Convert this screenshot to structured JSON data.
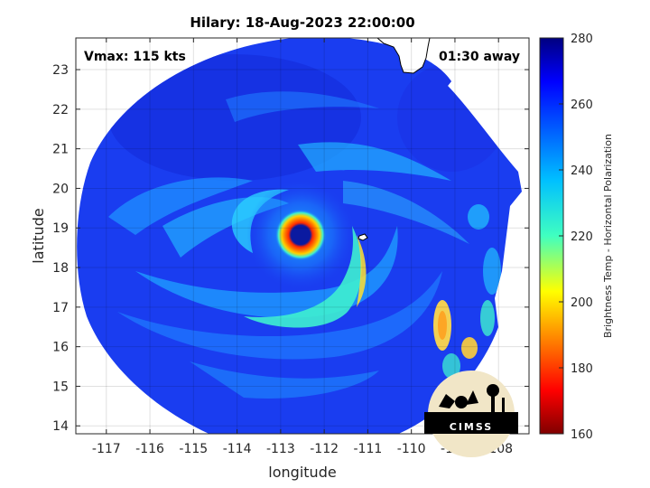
{
  "chart_data": {
    "type": "heatmap",
    "title": "Hilary: 18-Aug-2023 22:00:00",
    "xlabel": "longitude",
    "ylabel": "latitude",
    "xlim": [
      -117.7,
      -107.3
    ],
    "ylim": [
      13.8,
      23.8
    ],
    "xticks": [
      "-117",
      "-116",
      "-115",
      "-114",
      "-113",
      "-112",
      "-111",
      "-110",
      "-109",
      "-108"
    ],
    "yticks": [
      "14",
      "15",
      "16",
      "17",
      "18",
      "19",
      "20",
      "21",
      "22",
      "23"
    ],
    "grid": true,
    "storm_center": {
      "lon": -112.6,
      "lat": 18.9
    },
    "colorbar": {
      "label": "Brightness Temp - Horizontal Polarization",
      "range": [
        160,
        280
      ],
      "ticks": [
        "160",
        "180",
        "200",
        "220",
        "240",
        "260",
        "280"
      ],
      "colormap": "jet"
    },
    "annotations": {
      "vmax": "Vmax: 115 kts",
      "time_offset": "01:30 away"
    }
  },
  "logo": {
    "text": "CIMSS"
  },
  "colors": {
    "background_field": "#1a3df0",
    "eye": "#0a1a8c",
    "eyewall": "#e23a10",
    "coastline": "#000000",
    "land": "#ffffff"
  }
}
